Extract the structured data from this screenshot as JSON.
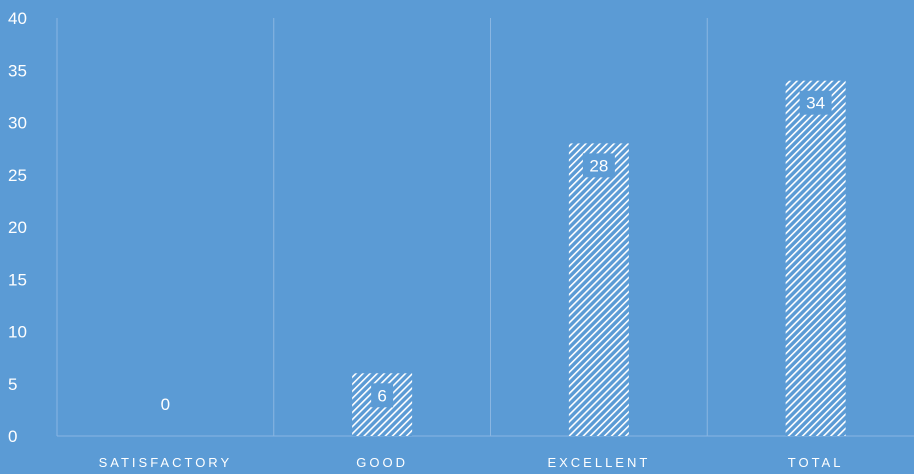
{
  "chart_data": {
    "type": "bar",
    "title": "",
    "xlabel": "",
    "ylabel": "",
    "categories": [
      "SATISFACTORY",
      "GOOD",
      "EXCELLENT",
      "TOTAL"
    ],
    "values": [
      0,
      6,
      28,
      34
    ],
    "ylim": [
      0,
      40
    ],
    "yticks": [
      0,
      5,
      10,
      15,
      20,
      25,
      30,
      35,
      40
    ],
    "grid": "vertical category separators",
    "legend": "none",
    "data_labels": true,
    "bar_fill": "diagonal hatch (white on blue)",
    "colors": {
      "background": "#5b9bd5",
      "bar_hatch": "#ffffff",
      "label_box": "#5b9bd5",
      "text": "#ffffff",
      "gridline": "#8ab6e2"
    }
  }
}
